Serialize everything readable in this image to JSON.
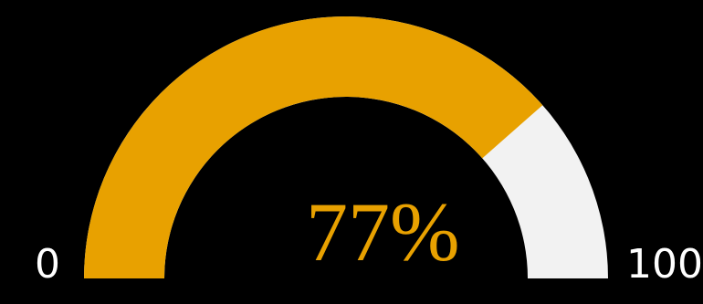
{
  "gauge": {
    "value": 77,
    "min": 0,
    "max": 100,
    "value_text": "77%",
    "min_text": "0",
    "max_text": "100",
    "fill_color": "#E8A100",
    "track_color": "#F2F2F2",
    "value_color": "#E8A100",
    "background_color": "#000000"
  }
}
